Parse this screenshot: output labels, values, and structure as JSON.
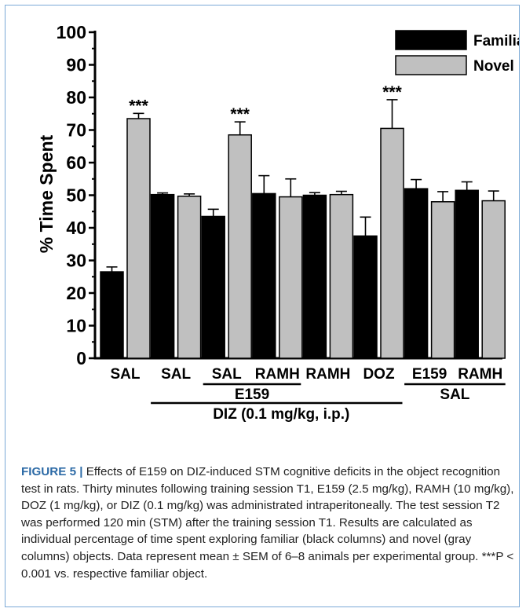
{
  "chart_data": {
    "type": "bar",
    "ylabel": "% Time Spent",
    "ylim": [
      0,
      100
    ],
    "yticks": [
      0,
      10,
      20,
      30,
      40,
      50,
      60,
      70,
      80,
      90,
      100
    ],
    "series": [
      {
        "name": "Familiar",
        "color": "#000000",
        "values": [
          26.5,
          50.2,
          43.5,
          50.5,
          50.0,
          37.5,
          52.0,
          51.5
        ],
        "sem": [
          1.5,
          0.5,
          2.2,
          5.5,
          0.8,
          5.8,
          2.8,
          2.6
        ]
      },
      {
        "name": "Novel",
        "color": "#c0c0c0",
        "values": [
          73.5,
          49.7,
          68.5,
          49.5,
          50.2,
          70.5,
          48.0,
          48.3
        ],
        "sem": [
          1.6,
          0.7,
          4.0,
          5.5,
          1.0,
          8.8,
          3.1,
          3.0
        ]
      }
    ],
    "group_labels": [
      "SAL",
      "SAL",
      "SAL",
      "RAMH",
      "RAMH",
      "DOZ",
      "E159",
      "RAMH"
    ],
    "significance": [
      "***",
      "",
      "***",
      "",
      "",
      "***",
      "",
      ""
    ],
    "bracket_labels": [
      "E159",
      "DIZ (0.1 mg/kg, i.p.)",
      "SAL"
    ]
  },
  "caption": {
    "label": "FIGURE 5 |",
    "text": " Effects of E159 on DIZ-induced STM cognitive deficits in the object recognition test in rats. Thirty minutes following training session T1, E159 (2.5 mg/kg), RAMH (10 mg/kg), DOZ (1 mg/kg), or DIZ (0.1 mg/kg) was administrated intraperitoneally. The test session T2 was performed 120 min (STM) after the training session T1. Results are calculated as individual percentage of time spent exploring familiar (black columns) and novel (gray columns) objects. Data represent mean ± SEM of 6–8 animals per experimental group. ***P < 0.001 vs. respective familiar object."
  }
}
